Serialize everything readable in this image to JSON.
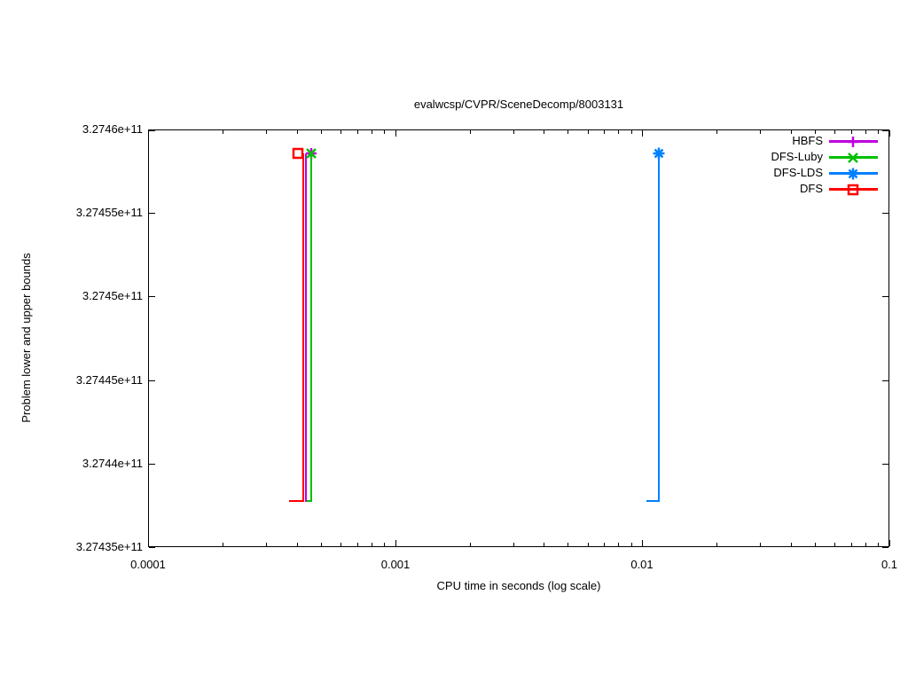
{
  "chart_data": {
    "type": "line",
    "subtype": "steps-with-end-markers",
    "title": "evalwcsp/CVPR/SceneDecomp/8003131",
    "xlabel": "CPU time in seconds (log scale)",
    "ylabel": "Problem lower and upper bounds",
    "x_scale": "log10",
    "xlim": [
      0.0001,
      0.1
    ],
    "ylim": [
      327435000000,
      327460000000
    ],
    "grid": false,
    "legend_position": "top-right-inside",
    "x_ticks": [
      {
        "v": 0.0001,
        "label": "0.0001"
      },
      {
        "v": 0.001,
        "label": "0.001"
      },
      {
        "v": 0.01,
        "label": "0.01"
      },
      {
        "v": 0.1,
        "label": "0.1"
      }
    ],
    "x_minor_ticks": [
      0.0002,
      0.0003,
      0.0004,
      0.0005,
      0.0006,
      0.0007,
      0.0008,
      0.0009,
      0.002,
      0.003,
      0.004,
      0.005,
      0.006,
      0.007,
      0.008,
      0.009,
      0.02,
      0.03,
      0.04,
      0.05,
      0.06,
      0.07,
      0.08,
      0.09
    ],
    "y_ticks": [
      {
        "v": 327460000000,
        "label": "3.2746e+11"
      },
      {
        "v": 327455000000,
        "label": "3.27455e+11"
      },
      {
        "v": 327450000000,
        "label": "3.2745e+11"
      },
      {
        "v": 327445000000,
        "label": "3.27445e+11"
      },
      {
        "v": 327440000000,
        "label": "3.2744e+11"
      },
      {
        "v": 327435000000,
        "label": "3.27435e+11"
      }
    ],
    "series": [
      {
        "name": "HBFS",
        "color": "#BF00DF",
        "marker": "plus",
        "lower_bound_steps": [
          [
            0.00043,
            327437800000
          ],
          [
            0.00043,
            327458600000
          ]
        ],
        "marker_point": [
          0.000452,
          327458600000
        ]
      },
      {
        "name": "DFS-Luby",
        "color": "#00C000",
        "marker": "cross",
        "lower_bound_steps": [
          [
            0.000435,
            327437800000
          ],
          [
            0.000452,
            327458600000
          ]
        ],
        "marker_point": [
          0.000452,
          327458600000
        ]
      },
      {
        "name": "DFS-LDS",
        "color": "#0080FF",
        "marker": "asterisk",
        "lower_bound_steps": [
          [
            0.0103,
            327437800000
          ],
          [
            0.0116,
            327458600000
          ]
        ],
        "marker_point": [
          0.0116,
          327458600000
        ]
      },
      {
        "name": "DFS",
        "color": "#FF0000",
        "marker": "open-square",
        "lower_bound_steps": [
          [
            0.00037,
            327437800000
          ],
          [
            0.00042,
            327458600000
          ]
        ],
        "marker_point": [
          0.0004,
          327458600000
        ]
      }
    ]
  }
}
